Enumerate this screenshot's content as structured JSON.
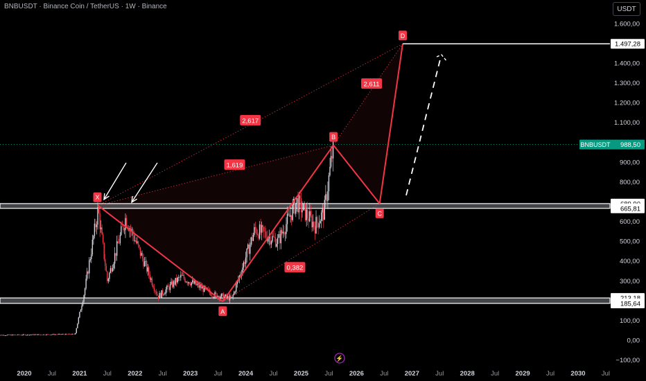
{
  "header": {
    "title": "BNBUSDT · Binance Coin / TetherUS · 1W · Binance",
    "currency_button": "USDT"
  },
  "colors": {
    "up_candle": "#d1d4dc",
    "down_candle": "#f23645",
    "pattern": "#f23645",
    "price_tag": "#089981",
    "zone_line": "#ffffff",
    "background": "#000000"
  },
  "chart_data": {
    "type": "candlestick",
    "x_axis": {
      "ticks": [
        "2020",
        "Jul",
        "2021",
        "Jul",
        "2022",
        "Jul",
        "2023",
        "Jul",
        "2024",
        "Jul",
        "2025",
        "Jul",
        "2026",
        "Jul",
        "2027",
        "Jul",
        "2028",
        "Jul",
        "2029",
        "Jul",
        "2030",
        "Jul"
      ],
      "range": [
        "2019-07",
        "2030-11"
      ]
    },
    "y_axis": {
      "range": [
        -120,
        1690
      ],
      "tick_labels": [
        "1.600,00",
        "1.400,00",
        "1.300,00",
        "1.200,00",
        "1.100,00",
        "900,00",
        "800,00",
        "600,00",
        "500,00",
        "400,00",
        "300,00",
        "100,00",
        "0,00",
        "−100,00"
      ]
    },
    "price_tags": [
      {
        "label": "1.497,28",
        "value": 1497.28,
        "style": "white"
      },
      {
        "label": "689,90",
        "value": 689.9,
        "style": "white"
      },
      {
        "label": "665,81",
        "value": 665.81,
        "style": "white"
      },
      {
        "label": "213,18",
        "value": 213.18,
        "style": "white"
      },
      {
        "label": "185,64",
        "value": 185.64,
        "style": "white"
      }
    ],
    "current_price": {
      "symbol": "BNBUSDT",
      "label": "988,50",
      "value": 988.5
    },
    "support_zones": [
      {
        "top": 689.9,
        "bottom": 665.81,
        "from": "2019-07"
      },
      {
        "top": 213.18,
        "bottom": 185.64,
        "from": "2019-07"
      }
    ],
    "harmonic_pattern": {
      "points": [
        {
          "label": "X",
          "date": "2021-05",
          "price": 680
        },
        {
          "label": "A",
          "date": "2023-08",
          "price": 195
        },
        {
          "label": "B",
          "date": "2025-08",
          "price": 985
        },
        {
          "label": "C",
          "date": "2026-06",
          "price": 690
        },
        {
          "label": "D",
          "date": "2026-11",
          "price": 1497
        }
      ],
      "ratios": [
        {
          "label": "1,619",
          "from": "X",
          "to": "B"
        },
        {
          "label": "2,617",
          "from": "X",
          "to": "D"
        },
        {
          "label": "0,382",
          "from": "A",
          "to": "C"
        },
        {
          "label": "2,611",
          "from": "B",
          "to": "D"
        }
      ]
    },
    "price_path_key": [
      [
        "2019-07",
        25
      ],
      [
        "2020-12",
        30
      ],
      [
        "2021-02",
        240
      ],
      [
        "2021-05",
        660
      ],
      [
        "2021-07",
        300
      ],
      [
        "2021-11",
        620
      ],
      [
        "2022-06",
        220
      ],
      [
        "2022-11",
        320
      ],
      [
        "2023-06",
        230
      ],
      [
        "2023-10",
        210
      ],
      [
        "2024-03",
        560
      ],
      [
        "2024-08",
        500
      ],
      [
        "2024-12",
        700
      ],
      [
        "2025-04",
        580
      ],
      [
        "2025-06",
        650
      ],
      [
        "2025-08",
        985
      ]
    ]
  }
}
